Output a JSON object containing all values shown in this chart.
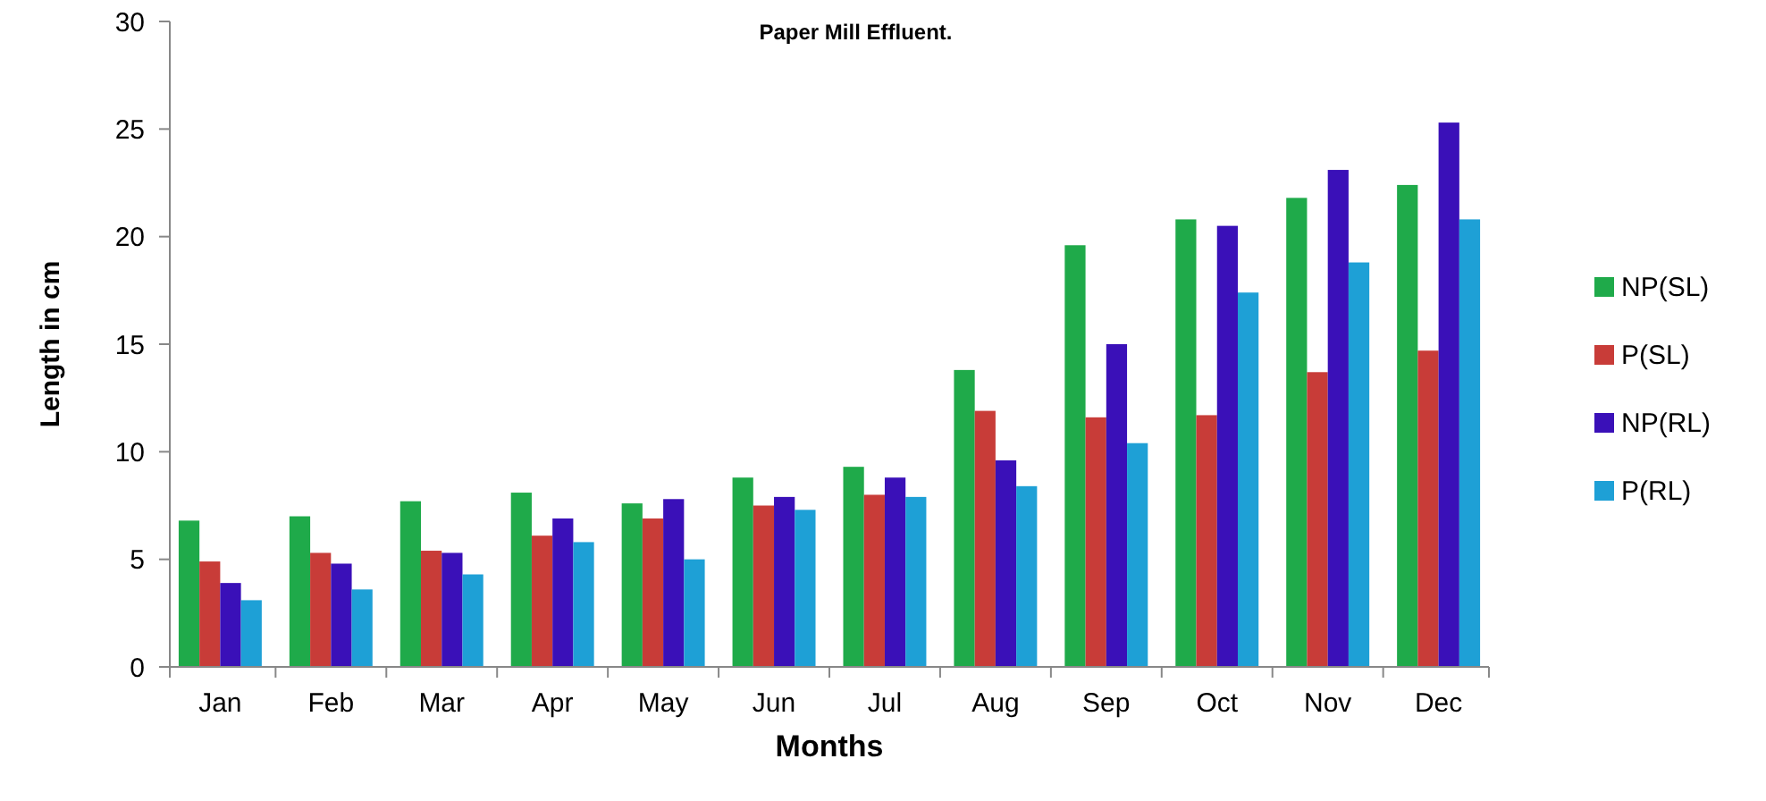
{
  "chart_data": {
    "type": "bar",
    "title": "Paper Mill  Effluent.",
    "xlabel": "Months",
    "ylabel": "Length in cm",
    "categories": [
      "Jan",
      "Feb",
      "Mar",
      "Apr",
      "May",
      "Jun",
      "Jul",
      "Aug",
      "Sep",
      "Oct",
      "Nov",
      "Dec"
    ],
    "series": [
      {
        "name": "NP(SL)",
        "color": "#1faa4a",
        "values": [
          6.8,
          7.0,
          7.7,
          8.1,
          7.6,
          8.8,
          9.3,
          13.8,
          19.6,
          20.8,
          21.8,
          22.4
        ]
      },
      {
        "name": "P(SL)",
        "color": "#c83c38",
        "values": [
          4.9,
          5.3,
          5.4,
          6.1,
          6.9,
          7.5,
          8.0,
          11.9,
          11.6,
          11.7,
          13.7,
          14.7
        ]
      },
      {
        "name": "NP(RL)",
        "color": "#3a10b8",
        "values": [
          3.9,
          4.8,
          5.3,
          6.9,
          7.8,
          7.9,
          8.8,
          9.6,
          15.0,
          20.5,
          23.1,
          25.3
        ]
      },
      {
        "name": "P(RL)",
        "color": "#1ea0d6",
        "values": [
          3.1,
          3.6,
          4.3,
          5.8,
          5.0,
          7.3,
          7.9,
          8.4,
          10.4,
          17.4,
          18.8,
          20.8
        ]
      }
    ],
    "ylim": [
      0,
      30
    ],
    "yticks": [
      0,
      5,
      10,
      15,
      20,
      25,
      30
    ],
    "grid": false,
    "legend": "right"
  }
}
